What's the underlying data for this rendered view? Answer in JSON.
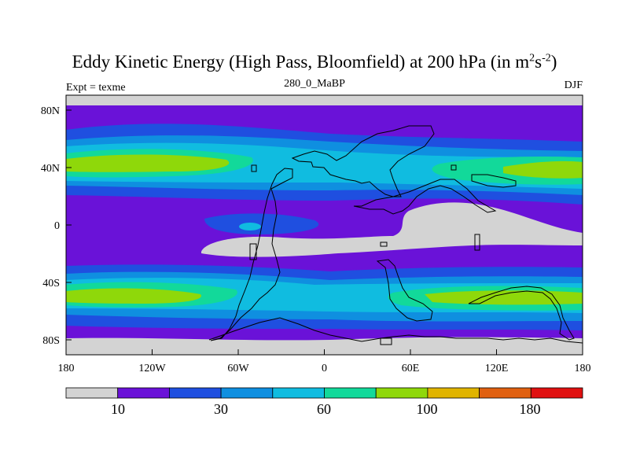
{
  "title": {
    "main": "Eddy Kinetic Energy (High Pass, Bloomfield) at 200 hPa (in m",
    "sup1": "2",
    "mid": "s",
    "sup2": "-2",
    "close": ")"
  },
  "subtitle": "280_0_MaBP",
  "left_label": "Expt = texme",
  "right_label": "DJF",
  "axes": {
    "x_ticks": [
      "180",
      "120W",
      "60W",
      "0",
      "60E",
      "120E",
      "180"
    ],
    "y_ticks": [
      "80N",
      "40N",
      "0",
      "40S",
      "80S"
    ]
  },
  "colorbar": {
    "colors": [
      "#d3d3d3",
      "#6a12d8",
      "#1f4fe0",
      "#0f8fe0",
      "#10bce0",
      "#12d99a",
      "#8fd80a",
      "#e0b400",
      "#e06010",
      "#e01010"
    ],
    "labels": [
      "10",
      "30",
      "60",
      "100",
      "180"
    ]
  },
  "chart_data": {
    "type": "heatmap",
    "title": "Eddy Kinetic Energy (High Pass, Bloomfield) at 200 hPa (in m2s-2)",
    "subtitle": "280_0_MaBP",
    "season": "DJF",
    "experiment": "Expt = texme",
    "x_range": [
      -180,
      180
    ],
    "y_range": [
      -90,
      90
    ],
    "colorbar_labels": [
      10,
      30,
      60,
      100,
      180
    ],
    "levels": [
      "<10",
      "10-20",
      "20-30",
      "30-45",
      "45-60",
      "60-80",
      "80-100",
      "100-140",
      "140-180",
      ">180"
    ]
  }
}
